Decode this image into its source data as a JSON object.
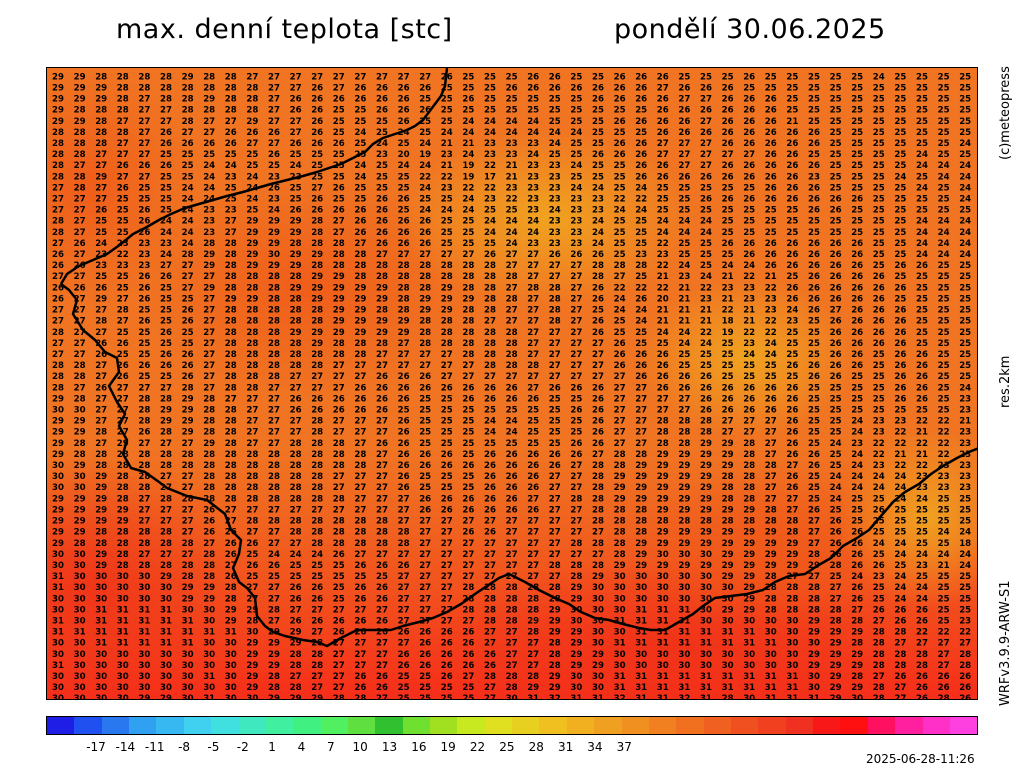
{
  "header": {
    "title": "max. denní teplota [stc]",
    "date": "pondělí 30.06.2025"
  },
  "side": {
    "copyright": "(c)meteopress",
    "resolution": "res.2km",
    "model": "WRFv3.9.9-ARW-S1"
  },
  "footer": {
    "timestamp": "2025-06-28-11:26"
  },
  "legend": {
    "ticks": [
      "-17",
      "-14",
      "-11",
      "-8",
      "-5",
      "-2",
      "1",
      "4",
      "7",
      "10",
      "13",
      "16",
      "19",
      "22",
      "25",
      "28",
      "31",
      "34",
      "37"
    ],
    "colors": [
      "#1e1ee6",
      "#2050f0",
      "#2a78f0",
      "#30a0f0",
      "#38b8f0",
      "#40d0f0",
      "#40e0e0",
      "#40e8c0",
      "#40f0a0",
      "#40f080",
      "#50f060",
      "#60e040",
      "#30c030",
      "#70e030",
      "#a0e020",
      "#c8e820",
      "#e0e020",
      "#e8d020",
      "#f0c020",
      "#f0b020",
      "#f0a020",
      "#f09020",
      "#f08020",
      "#f07020",
      "#f06020",
      "#f05020",
      "#f04020",
      "#f03020",
      "#f81818",
      "#ff1010",
      "#ff1060",
      "#ff20a0",
      "#ff30c8",
      "#ff40e0"
    ]
  },
  "grid": {
    "rows": [
      "29 29 28 28 28 28 29 28 28 27 27 27 27 27 27 27 27 27 26 25 25 25 26 26 25 25 26 26 26 25 25 25 26 25 25 25 25 25 24 25 25 25 25 2",
      "29 29 29 28 28 28 28 28 28 28 27 27 26 27 26 26 26 26 25 25 25 26 26 26 26 26 26 26 27 26 26 26 25 25 25 25 25 25 25 25 25 25 25 2",
      "29 29 29 28 27 28 28 29 28 28 27 26 26 26 26 26 26 25 25 26 25 25 25 25 25 26 26 26 26 27 27 26 26 26 25 25 25 25 25 25 25 25 25 2",
      "29 28 28 28 27 27 28 28 28 28 27 26 26 25 25 26 26 26 25 25 25 25 25 25 25 25 25 25 26 26 26 26 26 26 25 25 25 25 25 25 25 25 25 2",
      "29 29 28 27 27 27 28 27 27 29 27 27 26 25 25 25 26 25 25 24 24 24 24 25 25 25 26 26 26 26 27 26 26 26 21 25 25 25 25 25 25 25 25 2",
      "28 28 28 28 27 26 27 27 26 26 26 27 26 25 24 25 24 25 24 24 24 24 24 24 24 25 25 25 26 26 26 26 26 26 26 26 25 25 25 25 25 25 25 2",
      "28 28 28 27 27 26 26 26 26 27 27 26 26 26 25 24 25 24 21 21 23 23 23 24 25 25 26 26 27 27 27 26 26 26 26 26 25 25 25 25 25 25 24 2",
      "28 28 27 27 27 25 25 25 25 25 26 25 25 25 25 23 20 19 23 24 23 23 24 25 25 26 26 26 27 27 27 27 27 26 26 25 25 25 25 25 24 25 25 2",
      "28 27 27 26 26 26 25 24 24 25 25 24 25 25 24 25 24 24 21 19 22 21 23 23 24 25 25 26 26 27 27 26 26 26 26 26 25 25 25 25 24 24 24 2",
      "28 28 29 27 27 25 25 24 23 24 23 23 25 25 24 25 25 22 22 19 17 21 23 23 25 25 25 26 26 26 26 26 26 26 26 23 25 25 25 24 25 24 24 2",
      "27 28 27 26 25 25 24 24 25 24 26 25 27 26 25 25 25 24 23 22 22 23 23 23 24 24 25 24 25 25 25 25 25 26 26 26 25 25 25 25 24 25 24 2",
      "27 27 27 25 25 25 24 24 25 24 23 25 26 25 25 26 26 25 25 24 23 22 23 23 23 23 22 22 25 25 26 26 26 26 26 26 26 26 25 25 25 25 24 2",
      "27 27 26 25 26 25 24 23 23 25 24 26 26 26 26 26 25 24 24 24 25 25 23 24 23 23 24 24 25 25 25 25 25 25 25 26 26 25 25 25 25 25 25 2",
      "28 27 25 25 26 24 24 23 27 29 29 29 28 27 26 26 26 26 25 25 24 24 24 23 23 24 25 25 24 24 24 25 25 25 25 25 25 25 25 25 24 24 24 2",
      "28 27 25 25 26 24 24 23 27 29 29 29 28 27 26 26 26 26 25 25 24 24 24 23 23 24 25 25 24 24 24 25 25 25 25 25 25 25 25 25 24 24 24 2",
      "27 26 24 23 23 23 24 28 28 29 29 28 28 28 27 26 26 26 25 25 25 24 23 23 23 24 25 25 22 25 25 26 26 26 26 26 26 26 25 25 24 24 24 2",
      "26 27 23 22 23 24 28 29 28 29 30 29 29 28 28 27 27 27 27 27 26 27 27 26 26 26 25 23 23 25 25 25 26 26 26 26 26 26 25 25 24 24 24 2",
      "26 26 23 23 23 27 27 29 28 29 29 29 28 28 28 28 28 28 28 28 28 27 27 27 27 28 28 28 22 24 25 24 24 26 26 26 26 26 25 26 26 25 25 2",
      "27 27 25 25 26 26 27 27 28 28 28 28 29 29 28 28 28 28 28 28 28 28 27 27 27 28 27 25 21 23 24 21 22 21 25 26 26 26 26 25 25 25 25 2",
      "26 26 26 25 26 25 27 29 28 28 28 29 29 29 29 29 28 28 29 28 28 27 28 28 27 26 22 22 22 21 22 23 23 22 26 26 26 26 26 26 25 25 25 2",
      "26 27 29 27 26 25 25 27 29 29 28 28 29 29 29 29 28 29 29 29 28 28 27 28 27 26 24 26 20 21 23 21 23 23 26 26 26 26 26 25 25 25 25 2",
      "27 27 27 28 25 25 26 27 28 28 28 28 28 29 29 28 28 29 29 28 28 27 27 28 27 25 24 24 21 21 21 22 21 23 24 26 27 26 26 26 25 25 25 2",
      "27 27 28 27 26 25 26 27 28 28 28 28 28 29 29 29 29 28 28 28 27 27 27 28 27 26 25 24 21 21 21 18 21 22 23 25 26 26 26 26 25 25 25 2",
      "28 27 27 25 25 26 25 27 28 28 28 29 29 29 29 29 29 28 28 28 28 28 27 27 27 26 25 25 24 24 22 19 22 22 25 25 26 26 26 26 25 25 25 2",
      "27 27 26 26 25 25 25 27 28 28 28 28 29 28 28 28 27 28 28 28 28 28 27 27 27 27 26 25 25 24 24 25 23 24 25 25 26 26 26 26 25 25 25 2",
      "27 27 26 25 25 26 26 27 28 28 28 28 28 28 28 27 27 27 27 28 28 28 27 27 27 27 26 26 26 25 25 25 24 24 25 25 26 26 25 26 26 25 25 2",
      "28 28 27 26 26 26 26 27 28 28 28 28 28 27 27 27 27 27 27 27 28 28 28 27 27 27 26 26 26 25 25 25 25 25 26 26 26 26 25 26 26 25 25 2",
      "28 28 27 26 25 25 26 27 28 28 28 27 27 27 27 26 26 26 27 27 27 27 27 27 27 27 27 26 26 26 26 25 25 25 25 26 26 25 25 26 26 25 25 2",
      "28 27 26 27 27 27 28 27 28 28 27 27 27 27 26 26 26 26 26 26 26 26 27 26 26 26 27 27 26 26 26 26 26 26 26 25 25 25 25 26 26 25 24 2",
      "29 28 27 27 28 28 29 28 27 27 27 26 26 26 26 26 26 25 25 26 26 26 26 25 25 26 27 27 27 27 26 26 26 26 26 25 25 25 25 26 26 25 23 2",
      "30 30 27 27 28 29 29 28 28 27 27 26 26 26 26 26 25 25 25 25 25 25 25 25 26 26 27 27 27 27 26 26 26 26 26 25 25 25 25 25 25 25 23 2",
      "29 29 27 27 28 29 29 28 28 27 27 27 28 27 27 27 26 25 25 25 24 24 25 25 25 26 27 27 28 28 28 27 27 27 26 25 25 24 23 23 22 22 21 2",
      "29 29 28 27 26 28 29 28 28 27 27 27 28 27 27 27 26 25 25 25 24 24 25 25 25 26 27 27 28 28 28 27 27 27 26 25 25 24 23 22 21 22 23 2",
      "29 28 27 29 27 27 27 29 28 27 27 28 28 28 27 26 26 25 25 25 25 25 25 25 26 26 27 27 28 28 29 29 28 27 26 25 24 23 22 22 22 22 23 2",
      "29 28 28 28 28 28 28 28 28 28 28 28 28 28 28 27 26 26 26 25 26 26 26 26 26 27 28 28 29 29 29 29 28 27 26 26 25 24 22 21 21 22 23 2",
      "30 29 28 28 28 28 28 28 28 28 28 28 28 28 28 27 26 26 26 26 26 26 26 26 27 28 28 29 29 29 29 29 28 28 27 26 25 24 23 22 22 23 23 2",
      "30 30 29 28 28 27 27 28 28 28 28 28 28 27 27 27 26 25 25 25 26 26 26 27 27 28 29 29 29 29 29 28 28 27 26 25 24 24 24 24 23 23 23 2",
      "30 30 29 28 28 27 27 28 28 28 28 28 28 27 27 27 26 25 25 25 26 26 26 27 27 28 29 29 29 29 29 28 28 27 26 25 24 24 24 24 23 23 23 2",
      "29 29 29 28 27 28 28 28 28 28 28 28 28 28 27 27 27 26 26 26 26 26 27 27 28 28 29 29 29 29 29 28 28 27 27 25 24 25 25 24 24 25 25 2",
      "29 29 29 29 27 27 27 26 27 27 27 27 27 27 27 27 27 26 26 26 26 26 26 27 27 28 28 28 29 29 29 29 29 28 27 26 25 25 26 25 25 25 25 2",
      "29 29 29 29 27 27 27 26 27 28 28 28 28 28 28 28 27 27 27 27 27 27 27 27 27 28 28 28 28 28 28 28 28 28 28 27 26 25 25 25 25 25 25 2",
      "29 29 28 28 28 28 27 26 26 27 27 28 28 28 28 28 28 27 27 26 26 27 27 27 27 27 28 28 29 29 29 29 29 29 28 27 26 26 25 25 25 24 24 2",
      "29 28 28 28 28 28 28 27 26 26 27 27 28 28 28 28 28 27 27 27 27 27 27 27 28 28 28 29 29 29 29 29 29 29 29 27 26 26 24 24 25 25 18 2",
      "30 30 29 28 27 27 27 28 26 25 24 24 24 26 27 27 27 27 27 27 27 27 27 27 27 27 28 29 30 30 30 29 29 29 29 28 26 26 25 24 24 24 24 2",
      "30 30 29 28 28 28 28 28 27 26 26 25 25 25 26 26 26 27 27 27 27 27 27 28 28 28 29 29 29 29 29 29 29 29 29 29 28 26 26 25 23 21 24 2",
      "31 30 30 30 30 29 28 28 26 25 25 25 25 25 25 25 27 27 27 27 27 27 27 27 28 29 30 30 30 30 30 29 29 28 27 27 25 24 23 24 25 25 25 2",
      "31 30 30 30 30 30 29 29 28 27 27 26 26 25 26 26 27 27 27 28 28 28 28 28 29 30 30 30 30 30 30 30 29 28 28 28 27 26 25 24 24 25 25 2",
      "30 30 30 30 30 30 29 29 28 27 27 26 26 25 26 26 27 27 27 28 28 28 28 28 29 30 30 30 30 30 30 30 29 28 28 28 27 26 25 24 24 25 25 2",
      "30 30 31 31 31 31 30 30 29 29 28 27 27 27 27 27 27 27 27 28 28 28 28 29 30 30 30 31 31 31 30 29 29 28 28 28 28 27 26 26 26 25 25 2",
      "31 30 31 31 31 31 31 30 29 28 27 26 26 26 26 26 27 27 27 27 28 28 29 29 30 30 31 31 31 31 30 30 30 30 30 29 28 28 27 26 26 25 23 2",
      "31 31 31 31 31 31 31 31 31 30 29 29 27 26 26 26 26 26 26 26 27 27 28 29 29 30 30 31 31 31 31 31 31 30 30 29 29 29 28 28 22 22 22 2",
      "30 30 31 31 31 31 31 30 30 29 29 29 28 27 27 27 27 26 26 26 27 27 27 28 29 30 31 31 31 31 31 31 31 31 30 30 29 28 28 27 27 27 27 2",
      "30 30 30 30 30 30 30 30 30 29 29 28 28 27 27 27 26 26 26 26 26 27 27 28 29 29 30 30 30 30 30 30 30 30 30 29 29 29 28 28 28 27 28 2",
      "31 30 30 30 30 30 30 30 30 29 29 28 28 27 27 27 26 26 26 26 26 27 27 28 29 29 30 30 30 30 30 30 30 30 30 29 29 29 28 28 28 27 28 2",
      "30 30 30 30 30 30 30 31 30 29 28 27 27 27 26 26 25 25 26 27 28 28 28 29 30 30 31 31 31 31 31 31 31 31 31 30 29 28 27 26 26 26 26 2",
      "30 30 30 30 30 30 30 30 30 29 28 28 27 27 26 26 25 25 25 25 27 28 29 29 30 30 31 31 31 31 31 31 31 31 31 30 29 29 28 27 26 26 26 2",
      "30 30 30 30 29 29 30 31 30 30 29 29 29 28 28 27 25 25 25 25 27 30 31 32 31 31 32 31 31 32 31 28 30 31 31 31 29 30 28 27 26 28 26 2"
    ]
  }
}
